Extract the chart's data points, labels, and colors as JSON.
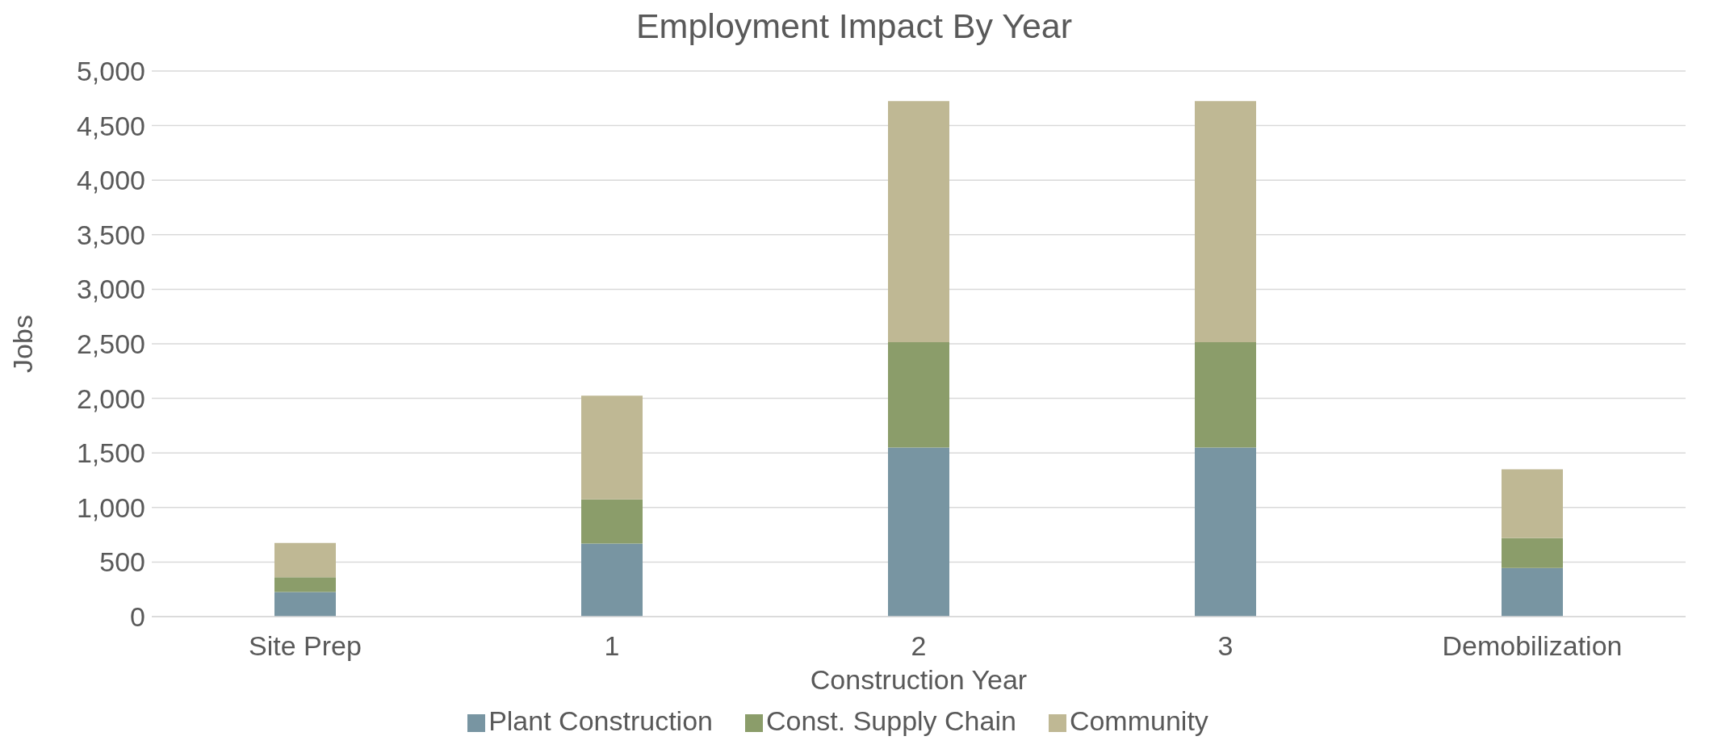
{
  "chart_data": {
    "type": "bar",
    "title": "Employment Impact By Year",
    "xlabel": "Construction Year",
    "ylabel": "Jobs",
    "categories": [
      "Site Prep",
      "1",
      "2",
      "3",
      "Demobilization"
    ],
    "stacked": true,
    "series": [
      {
        "name": "Plant Construction",
        "color": "#7895a2",
        "values": [
          225,
          670,
          1550,
          1550,
          445
        ]
      },
      {
        "name": "Const. Supply Chain",
        "color": "#8b9d6a",
        "values": [
          135,
          405,
          965,
          965,
          275
        ]
      },
      {
        "name": "Community",
        "color": "#bfb894",
        "values": [
          315,
          950,
          2210,
          2210,
          630
        ]
      }
    ],
    "ylim": [
      0,
      5000
    ],
    "yticks": [
      {
        "value": 0,
        "label": "0"
      },
      {
        "value": 500,
        "label": "500"
      },
      {
        "value": 1000,
        "label": "1,000"
      },
      {
        "value": 1500,
        "label": "1,500"
      },
      {
        "value": 2000,
        "label": "2,000"
      },
      {
        "value": 2500,
        "label": "2,500"
      },
      {
        "value": 3000,
        "label": "3,000"
      },
      {
        "value": 3500,
        "label": "3,500"
      },
      {
        "value": 4000,
        "label": "4,000"
      },
      {
        "value": 4500,
        "label": "4,500"
      },
      {
        "value": 5000,
        "label": "5,000"
      }
    ],
    "grid": "y",
    "legend": "bottom"
  }
}
